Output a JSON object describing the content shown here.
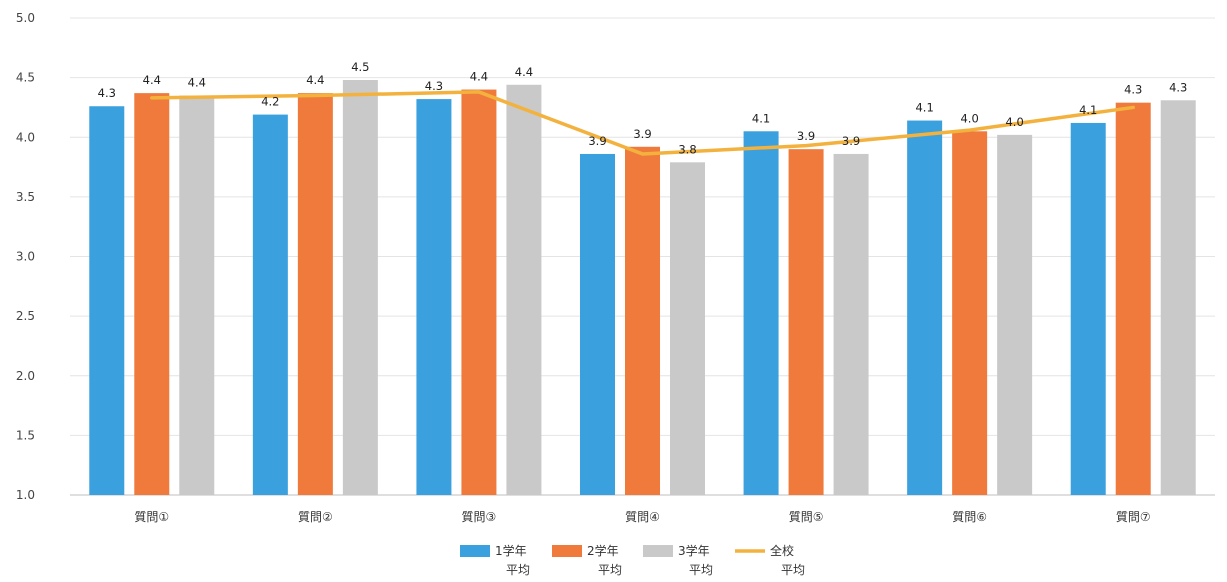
{
  "chart_data": {
    "type": "bar",
    "categories": [
      "質問①",
      "質問②",
      "質問③",
      "質問④",
      "質問⑤",
      "質問⑥",
      "質問⑦"
    ],
    "ylim": [
      1.0,
      5.0
    ],
    "yticks": [
      "1.0",
      "1.5",
      "2.0",
      "2.5",
      "3.0",
      "3.5",
      "4.0",
      "4.5",
      "5.0"
    ],
    "grid": true,
    "legend_position": "bottom",
    "series": [
      {
        "name_line1": "1学年",
        "name_line2": "平均",
        "kind": "bar",
        "color": "#3aa0de",
        "values": [
          4.26,
          4.19,
          4.32,
          3.86,
          4.05,
          4.14,
          4.12
        ],
        "labels": [
          "4.3",
          "4.2",
          "4.3",
          "3.9",
          "4.1",
          "4.1",
          "4.1"
        ]
      },
      {
        "name_line1": "2学年",
        "name_line2": "平均",
        "kind": "bar",
        "color": "#ef7a3c",
        "values": [
          4.37,
          4.37,
          4.4,
          3.92,
          3.9,
          4.05,
          4.29
        ],
        "labels": [
          "4.4",
          "4.4",
          "4.4",
          "3.9",
          "3.9",
          "4.0",
          "4.3"
        ]
      },
      {
        "name_line1": "3学年",
        "name_line2": "平均",
        "kind": "bar",
        "color": "#c9c9c9",
        "values": [
          4.35,
          4.48,
          4.44,
          3.79,
          3.86,
          4.02,
          4.31
        ],
        "labels": [
          "4.4",
          "4.5",
          "4.4",
          "3.8",
          "3.9",
          "4.0",
          "4.3"
        ]
      },
      {
        "name_line1": "全校",
        "name_line2": "平均",
        "kind": "line",
        "color": "#f3b23e",
        "values": [
          4.33,
          4.35,
          4.38,
          3.86,
          3.93,
          4.06,
          4.25
        ]
      }
    ]
  }
}
